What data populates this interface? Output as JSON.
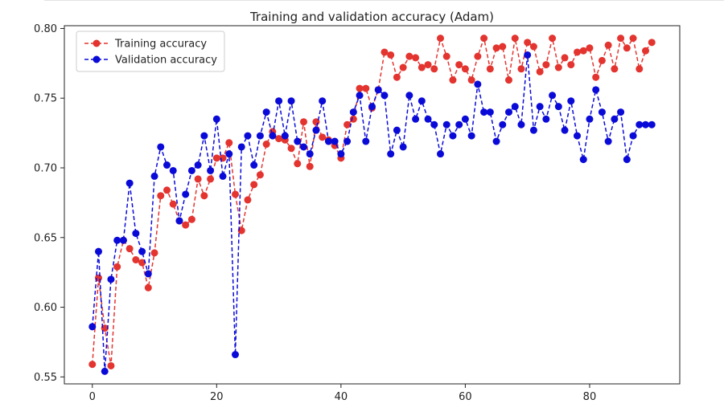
{
  "chart_data": {
    "type": "line",
    "title": "Training and validation accuracy (Adam)",
    "xlabel": "",
    "ylabel": "",
    "xlim": [
      -4.5,
      94.5
    ],
    "ylim": [
      0.545,
      0.802
    ],
    "xticks": [
      0,
      20,
      40,
      60,
      80
    ],
    "yticks": [
      0.55,
      0.6,
      0.65,
      0.7,
      0.75,
      0.8
    ],
    "ytick_labels": [
      "0.55",
      "0.60",
      "0.65",
      "0.70",
      "0.75",
      "0.80"
    ],
    "grid": false,
    "legend_position": "top-left",
    "series": [
      {
        "name": "Training accuracy",
        "color": "#e3342f",
        "marker": "circle",
        "linestyle": "dashed",
        "values": [
          0.559,
          0.621,
          0.585,
          0.558,
          0.629,
          0.648,
          0.642,
          0.634,
          0.632,
          0.614,
          0.639,
          0.68,
          0.684,
          0.674,
          0.662,
          0.659,
          0.663,
          0.692,
          0.68,
          0.692,
          0.707,
          0.707,
          0.718,
          0.681,
          0.655,
          0.677,
          0.688,
          0.695,
          0.717,
          0.726,
          0.721,
          0.72,
          0.714,
          0.703,
          0.733,
          0.701,
          0.733,
          0.722,
          0.72,
          0.716,
          0.707,
          0.731,
          0.735,
          0.757,
          0.757,
          0.743,
          0.756,
          0.783,
          0.781,
          0.765,
          0.772,
          0.78,
          0.779,
          0.772,
          0.774,
          0.771,
          0.793,
          0.78,
          0.763,
          0.774,
          0.771,
          0.763,
          0.78,
          0.793,
          0.771,
          0.786,
          0.787,
          0.763,
          0.793,
          0.771,
          0.79,
          0.787,
          0.769,
          0.774,
          0.793,
          0.772,
          0.779,
          0.774,
          0.783,
          0.784,
          0.786,
          0.765,
          0.777,
          0.788,
          0.771,
          0.793,
          0.786,
          0.793,
          0.771,
          0.784,
          0.79
        ]
      },
      {
        "name": "Validation accuracy",
        "color": "#0a0ad8",
        "marker": "circle",
        "linestyle": "dashed",
        "values": [
          0.586,
          0.64,
          0.554,
          0.62,
          0.648,
          0.648,
          0.689,
          0.653,
          0.64,
          0.624,
          0.694,
          0.715,
          0.702,
          0.698,
          0.662,
          0.681,
          0.698,
          0.702,
          0.723,
          0.698,
          0.735,
          0.694,
          0.71,
          0.566,
          0.715,
          0.723,
          0.702,
          0.723,
          0.74,
          0.723,
          0.748,
          0.723,
          0.748,
          0.719,
          0.715,
          0.71,
          0.727,
          0.748,
          0.719,
          0.719,
          0.71,
          0.719,
          0.74,
          0.752,
          0.719,
          0.744,
          0.756,
          0.752,
          0.71,
          0.727,
          0.715,
          0.752,
          0.735,
          0.748,
          0.735,
          0.731,
          0.71,
          0.731,
          0.723,
          0.731,
          0.735,
          0.723,
          0.76,
          0.74,
          0.74,
          0.719,
          0.731,
          0.74,
          0.744,
          0.731,
          0.781,
          0.727,
          0.744,
          0.735,
          0.752,
          0.744,
          0.727,
          0.748,
          0.723,
          0.706,
          0.735,
          0.756,
          0.74,
          0.719,
          0.735,
          0.74,
          0.706,
          0.723,
          0.731,
          0.731,
          0.731
        ]
      }
    ]
  }
}
